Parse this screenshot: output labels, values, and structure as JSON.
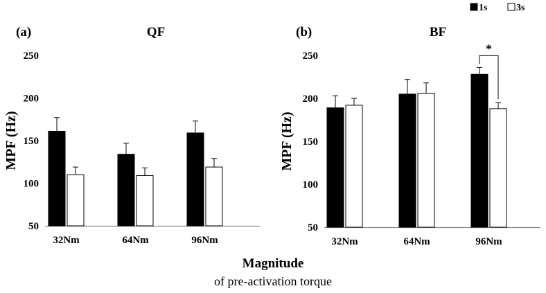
{
  "legend": {
    "items": [
      {
        "label": "1s",
        "fill": "#000000"
      },
      {
        "label": "3s",
        "fill": "#ffffff"
      }
    ],
    "placement": "top-right"
  },
  "x_axis_title": {
    "main": "Magnitude",
    "sub": "of pre-activation torque"
  },
  "chart_data": [
    {
      "type": "bar",
      "panel_label": "(a)",
      "title": "QF",
      "ylabel": "MPF (Hz)",
      "xlabel": "",
      "categories": [
        "32Nm",
        "64Nm",
        "96Nm"
      ],
      "ylim": [
        50,
        250
      ],
      "yticks": [
        50,
        100,
        150,
        200,
        250
      ],
      "grid": false,
      "series": [
        {
          "name": "1s",
          "color": "#000000",
          "values": [
            161,
            134,
            159
          ],
          "errors": [
            16,
            13,
            14
          ]
        },
        {
          "name": "3s",
          "color": "#ffffff",
          "values": [
            110,
            109,
            119
          ],
          "errors": [
            9,
            9,
            10
          ]
        }
      ],
      "annotations": []
    },
    {
      "type": "bar",
      "panel_label": "(b)",
      "title": "BF",
      "ylabel": "MPF (Hz)",
      "xlabel": "",
      "categories": [
        "32Nm",
        "64Nm",
        "96Nm"
      ],
      "ylim": [
        50,
        250
      ],
      "yticks": [
        50,
        100,
        150,
        200,
        250
      ],
      "grid": false,
      "series": [
        {
          "name": "1s",
          "color": "#000000",
          "values": [
            189,
            205,
            228
          ],
          "errors": [
            14,
            17,
            8
          ]
        },
        {
          "name": "3s",
          "color": "#ffffff",
          "values": [
            192,
            206,
            188
          ],
          "errors": [
            8,
            12,
            7
          ]
        }
      ],
      "annotations": [
        {
          "text": "*",
          "category": "96Nm",
          "type": "significance-bracket"
        }
      ]
    }
  ]
}
